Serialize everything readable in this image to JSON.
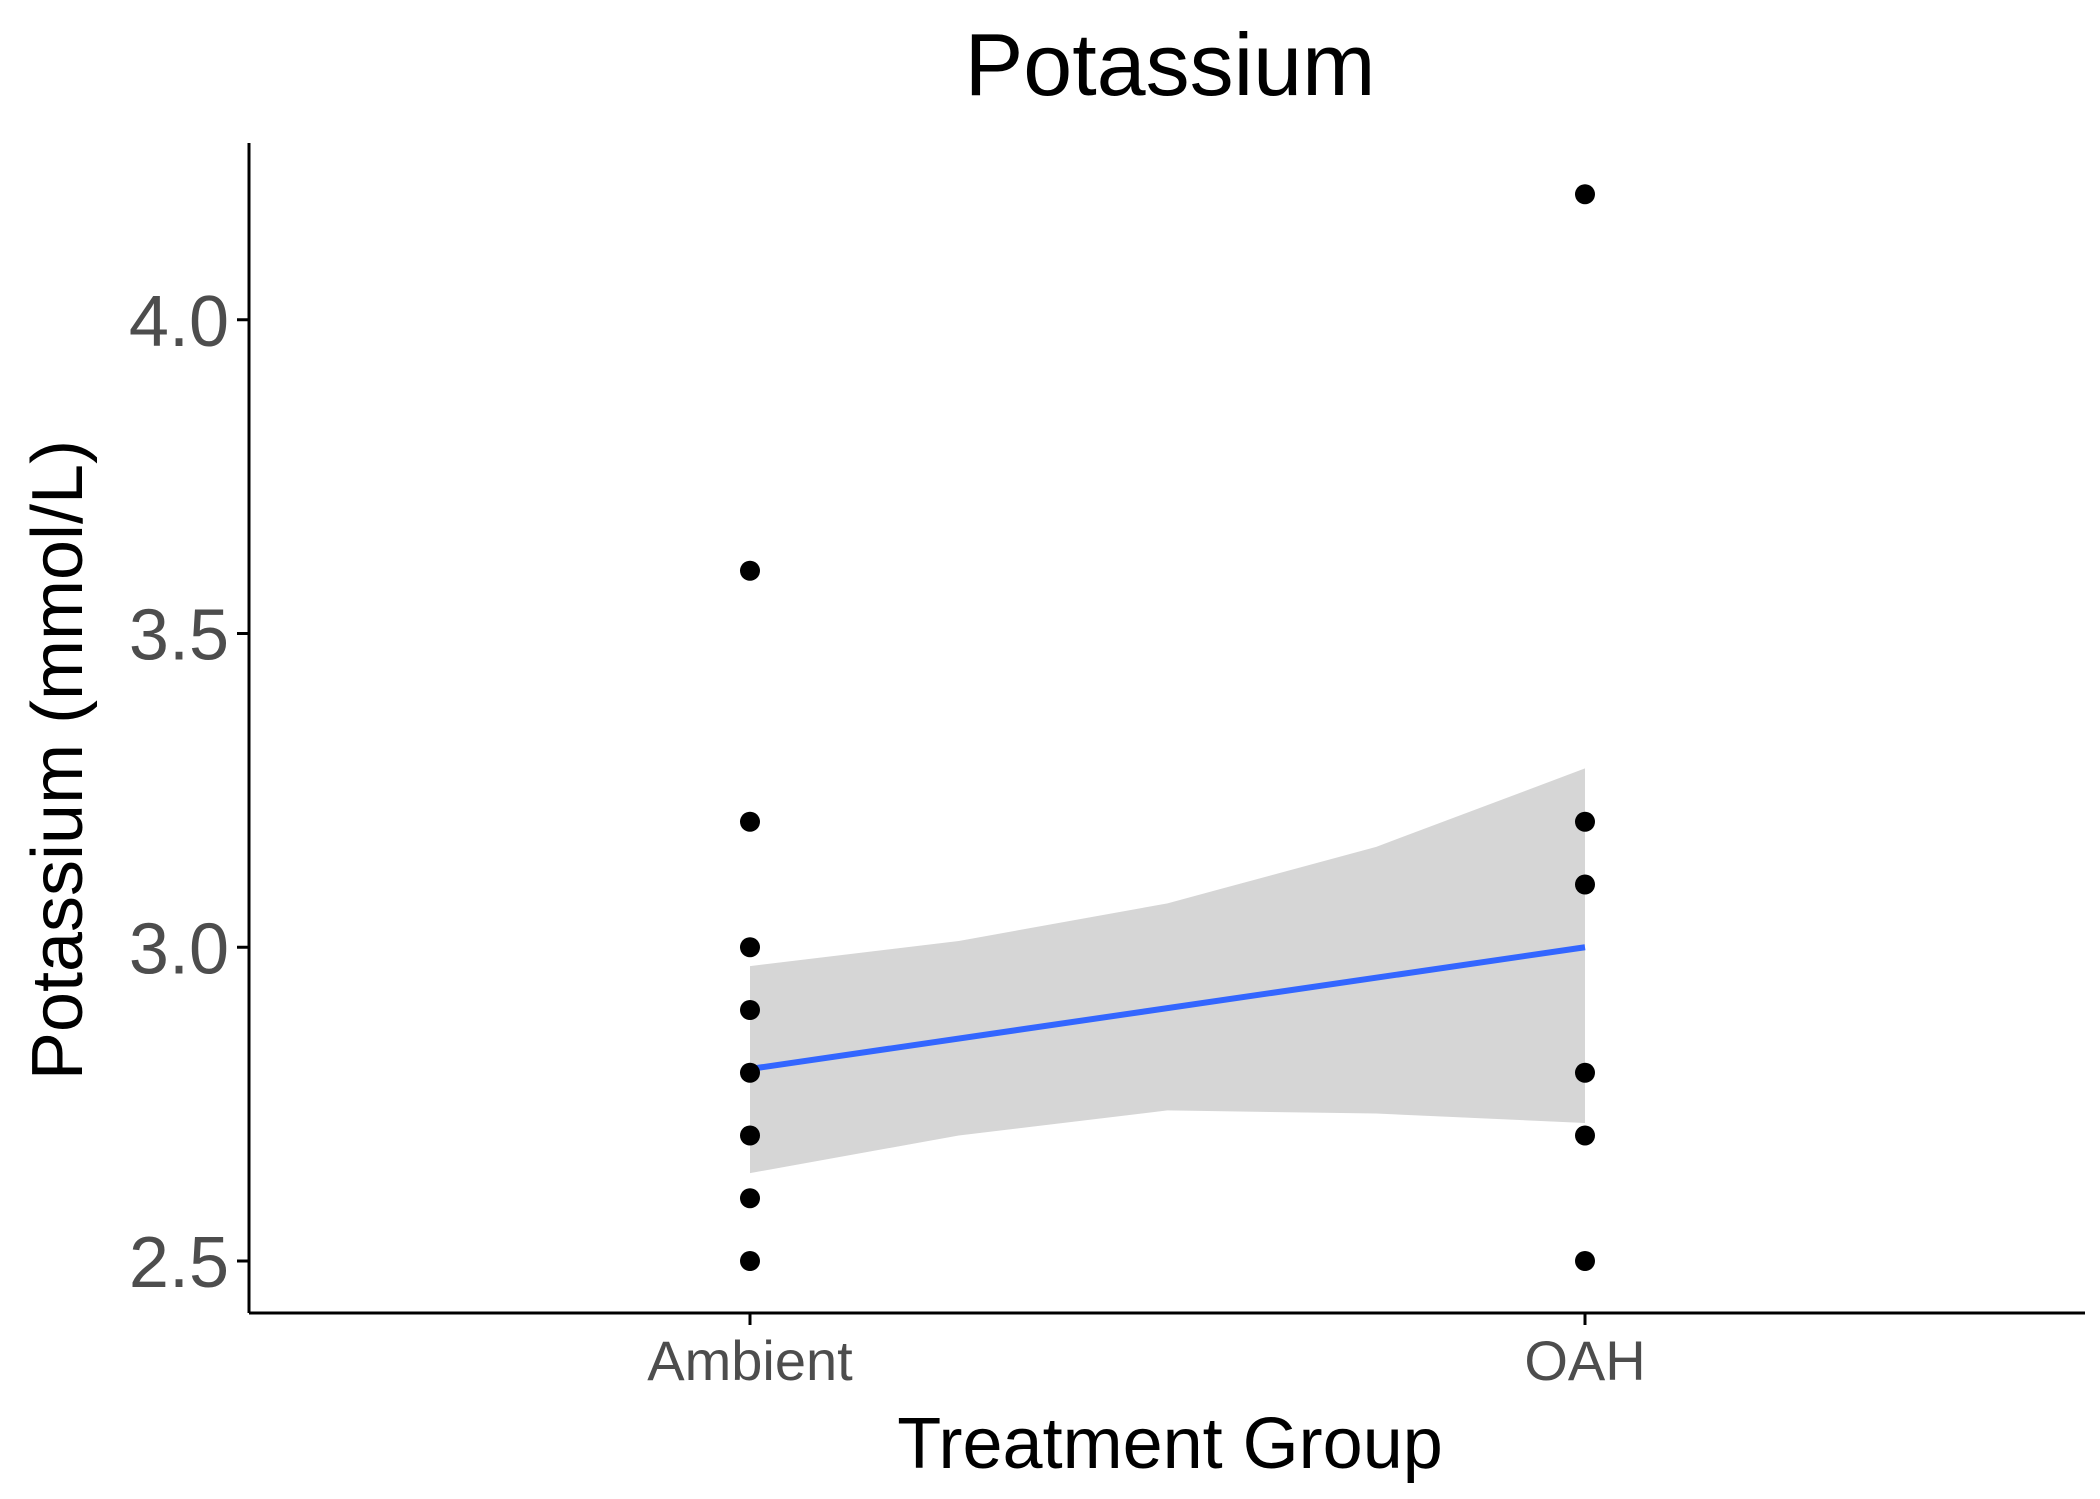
{
  "chart_data": {
    "type": "scatter",
    "title": "Potassium",
    "xlabel": "Treatment Group",
    "ylabel": "Potassium (mmol/L)",
    "categories": [
      "Ambient",
      "OAH"
    ],
    "yticks": [
      "2.5",
      "3.0",
      "3.5",
      "4.0"
    ],
    "ylim": [
      2.42,
      4.29
    ],
    "grid": false,
    "legend": "none",
    "points": [
      {
        "x": "Ambient",
        "y": 3.6
      },
      {
        "x": "Ambient",
        "y": 3.2
      },
      {
        "x": "Ambient",
        "y": 3.0
      },
      {
        "x": "Ambient",
        "y": 2.9
      },
      {
        "x": "Ambient",
        "y": 2.8
      },
      {
        "x": "Ambient",
        "y": 2.7
      },
      {
        "x": "Ambient",
        "y": 2.6
      },
      {
        "x": "Ambient",
        "y": 2.5
      },
      {
        "x": "OAH",
        "y": 4.2
      },
      {
        "x": "OAH",
        "y": 3.2
      },
      {
        "x": "OAH",
        "y": 3.1
      },
      {
        "x": "OAH",
        "y": 2.8
      },
      {
        "x": "OAH",
        "y": 2.7
      },
      {
        "x": "OAH",
        "y": 2.5
      }
    ],
    "trend_line": {
      "Ambient": 2.806,
      "OAH": 3.0
    },
    "confidence_band": {
      "upper": [
        {
          "t": 0.0,
          "y": 2.97
        },
        {
          "t": 0.25,
          "y": 3.01
        },
        {
          "t": 0.5,
          "y": 3.07
        },
        {
          "t": 0.75,
          "y": 3.16
        },
        {
          "t": 1.0,
          "y": 3.285
        }
      ],
      "lower": [
        {
          "t": 0.0,
          "y": 2.64
        },
        {
          "t": 0.25,
          "y": 2.7
        },
        {
          "t": 0.5,
          "y": 2.74
        },
        {
          "t": 0.75,
          "y": 2.735
        },
        {
          "t": 1.0,
          "y": 2.72
        }
      ]
    },
    "colors": {
      "points": "#000000",
      "trend_line": "#3366ff",
      "band": "#d6d6d6",
      "axis": "#000000",
      "tick_labels": "#4d4d4d"
    }
  }
}
